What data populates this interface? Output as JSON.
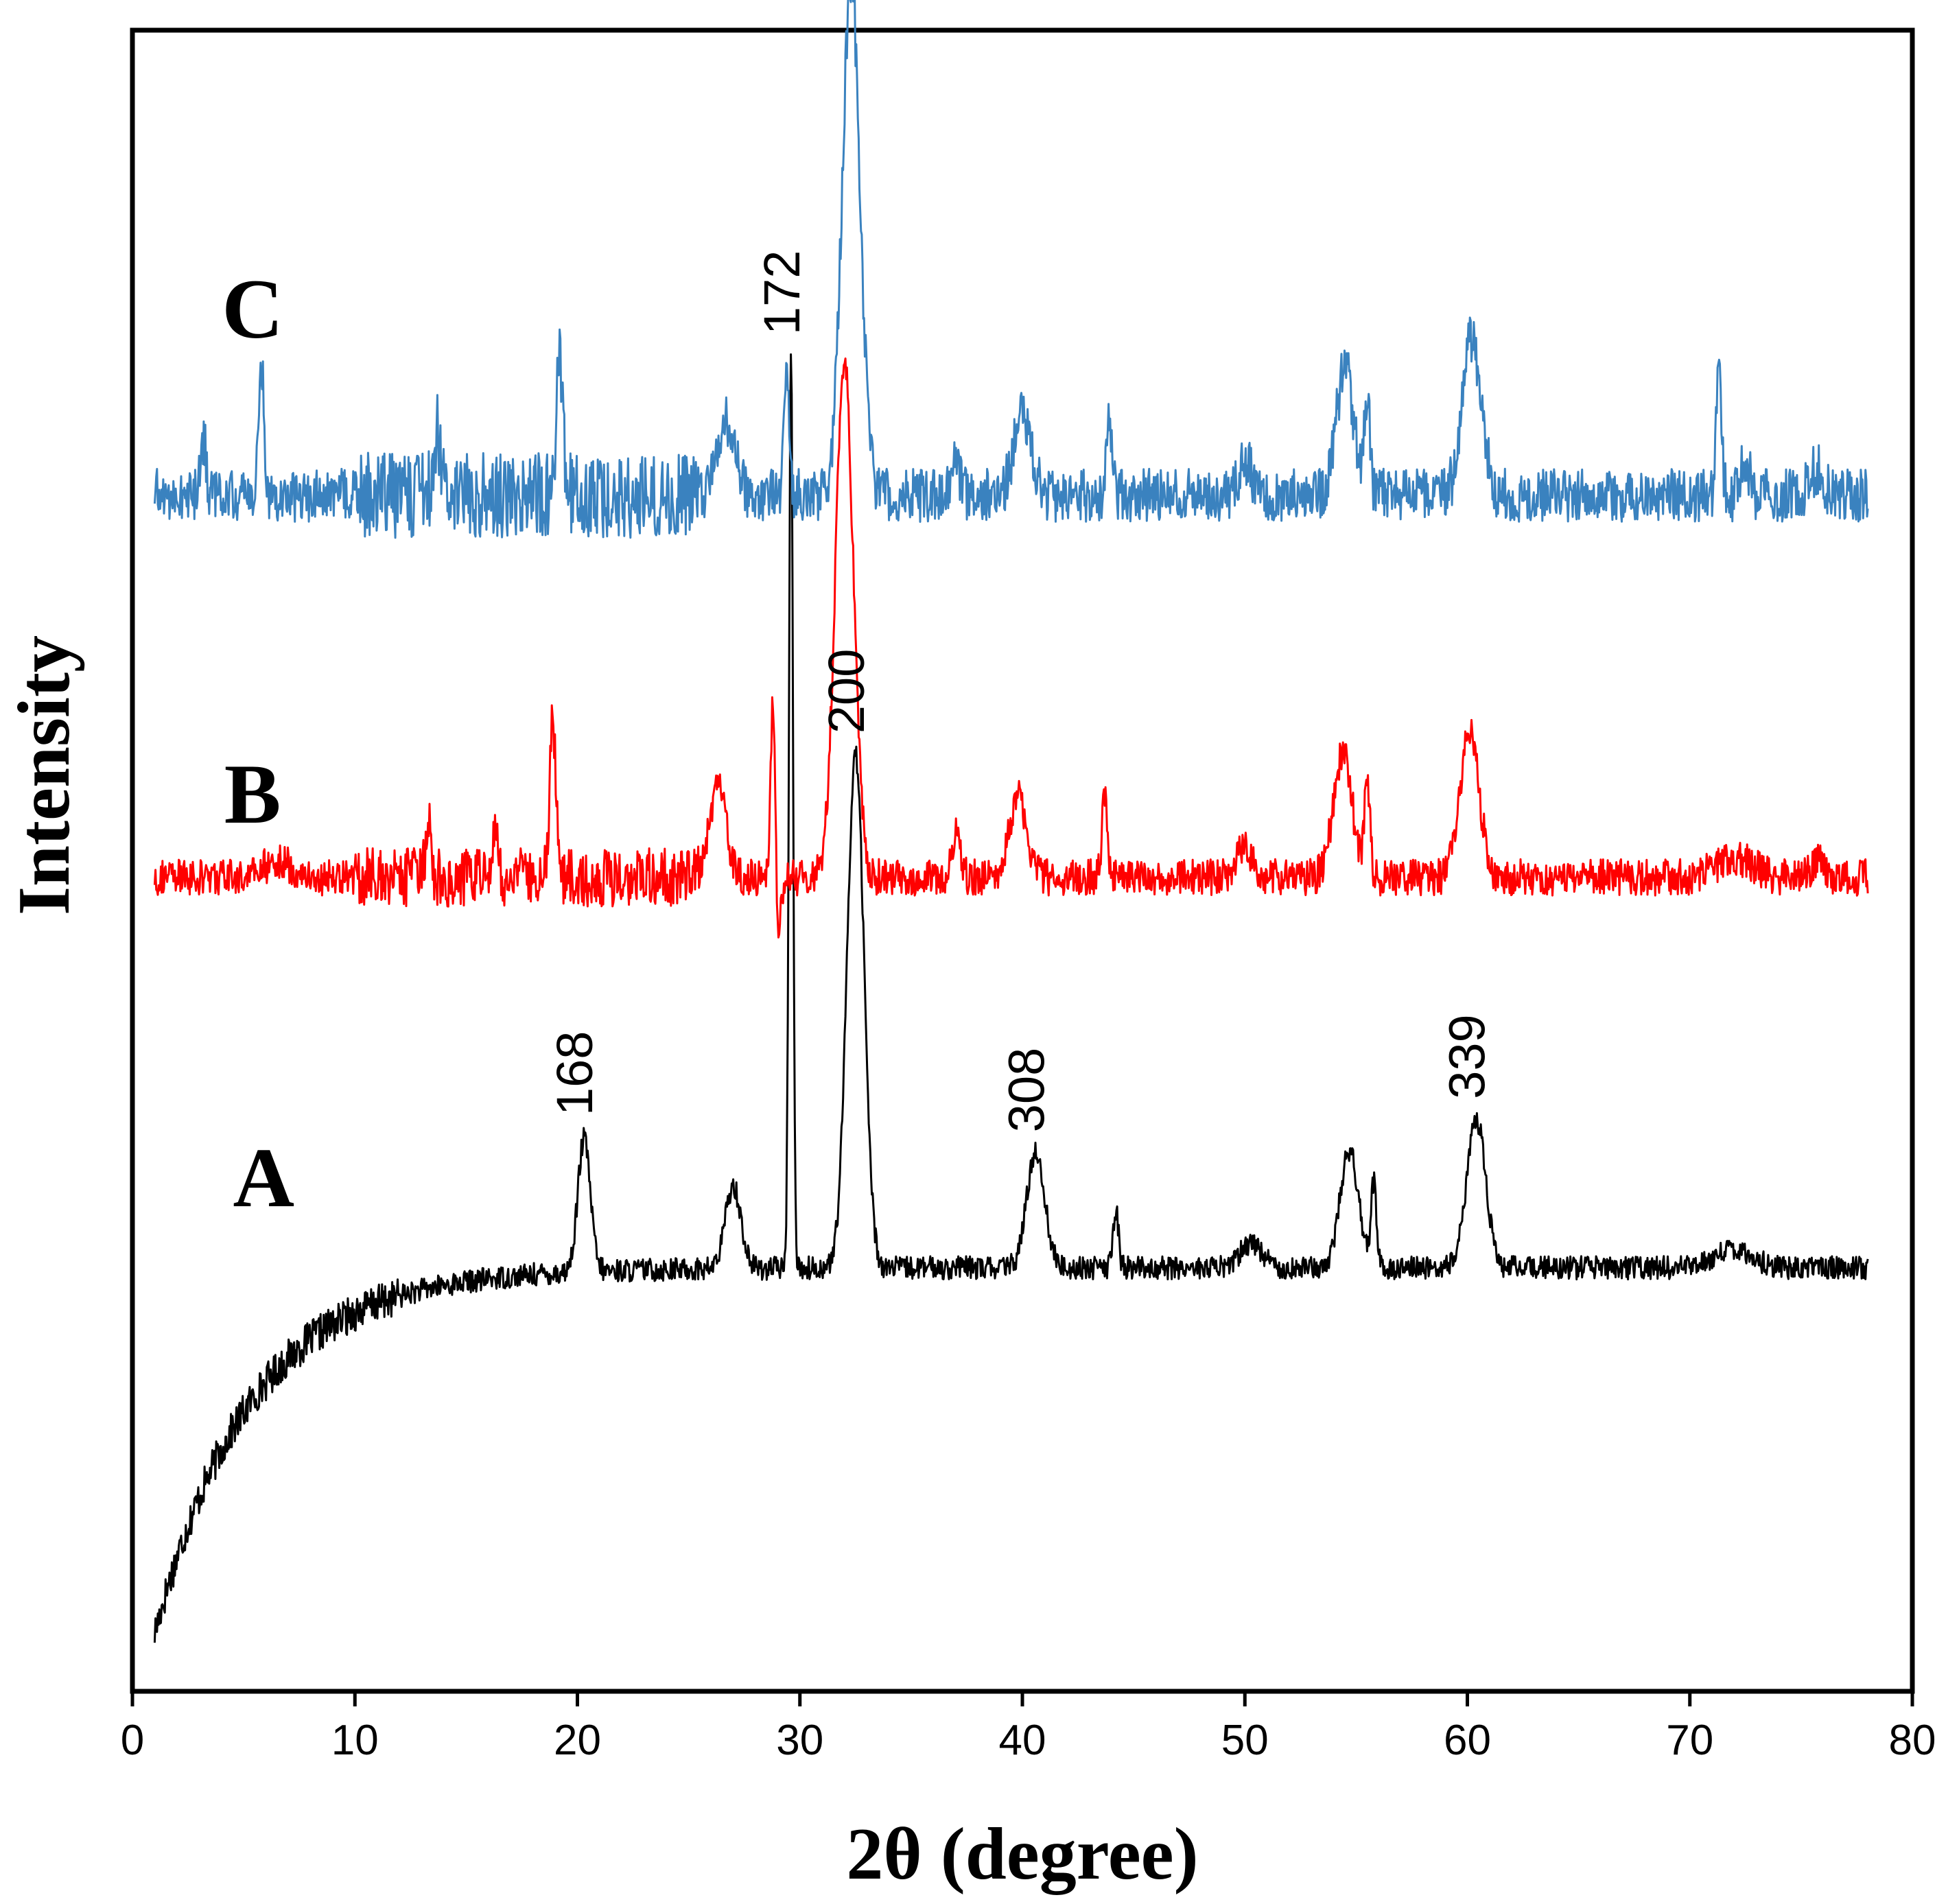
{
  "chart_data": {
    "type": "line",
    "title": "",
    "xlabel": "2θ (degree)",
    "ylabel": "Intensity",
    "xlim": [
      0,
      80
    ],
    "xticks": [
      "0",
      "10",
      "20",
      "30",
      "40",
      "50",
      "60",
      "70",
      "80"
    ],
    "y_ticks_shown": false,
    "grid": false,
    "legend": "none",
    "series": [
      {
        "name": "A",
        "color": "#000000",
        "baseline": 0.255,
        "noise": 0.007,
        "low_angle_rise": true,
        "peaks": [
          [
            20.3,
            0.08,
            0.28
          ],
          [
            27.0,
            0.05,
            0.35
          ],
          [
            29.6,
            0.55,
            0.09
          ],
          [
            32.5,
            0.31,
            0.38
          ],
          [
            40.6,
            0.07,
            0.4
          ],
          [
            44.2,
            0.035,
            0.12
          ],
          [
            50.3,
            0.015,
            0.5
          ],
          [
            54.7,
            0.07,
            0.42
          ],
          [
            55.8,
            0.05,
            0.12
          ],
          [
            60.4,
            0.09,
            0.42
          ],
          [
            72.0,
            0.012,
            0.8
          ]
        ],
        "peak_labels": [
          {
            "x": 20.3,
            "text": "168"
          },
          {
            "x": 29.6,
            "text": "172"
          },
          {
            "x": 32.5,
            "text": "200"
          },
          {
            "x": 40.6,
            "text": "308"
          },
          {
            "x": 60.4,
            "text": "339"
          }
        ]
      },
      {
        "name": "B",
        "color": "#ff0000",
        "baseline": 0.49,
        "noise": 0.011,
        "peaks": [
          [
            6.5,
            0.01,
            0.6
          ],
          [
            13.3,
            0.035,
            0.12
          ],
          [
            16.3,
            0.025,
            0.15
          ],
          [
            18.9,
            0.095,
            0.14
          ],
          [
            26.3,
            0.055,
            0.36
          ],
          [
            28.8,
            0.12,
            0.1
          ],
          [
            32.0,
            0.31,
            0.4
          ],
          [
            37.0,
            0.025,
            0.2
          ],
          [
            39.8,
            0.05,
            0.38
          ],
          [
            43.7,
            0.05,
            0.12
          ],
          [
            50.0,
            0.02,
            0.3
          ],
          [
            54.4,
            0.075,
            0.42
          ],
          [
            55.5,
            0.06,
            0.12
          ],
          [
            60.1,
            0.09,
            0.42
          ],
          [
            72.0,
            0.012,
            0.8
          ],
          [
            75.8,
            0.01,
            0.3
          ]
        ],
        "dips": [
          [
            29.0,
            0.045,
            0.12
          ]
        ]
      },
      {
        "name": "C",
        "color": "#3a82bf",
        "baseline": 0.72,
        "noise": 0.016,
        "peaks": [
          [
            3.2,
            0.035,
            0.12
          ],
          [
            5.8,
            0.08,
            0.12
          ],
          [
            13.7,
            0.04,
            0.15
          ],
          [
            19.2,
            0.085,
            0.14
          ],
          [
            26.7,
            0.045,
            0.38
          ],
          [
            29.4,
            0.075,
            0.12
          ],
          [
            32.3,
            0.31,
            0.4
          ],
          [
            37.0,
            0.02,
            0.2
          ],
          [
            40.0,
            0.05,
            0.38
          ],
          [
            43.9,
            0.045,
            0.12
          ],
          [
            50.0,
            0.02,
            0.3
          ],
          [
            54.5,
            0.075,
            0.4
          ],
          [
            55.5,
            0.06,
            0.12
          ],
          [
            60.2,
            0.095,
            0.42
          ],
          [
            71.3,
            0.08,
            0.12
          ],
          [
            72.5,
            0.02,
            0.2
          ],
          [
            75.7,
            0.015,
            0.3
          ]
        ]
      }
    ]
  }
}
